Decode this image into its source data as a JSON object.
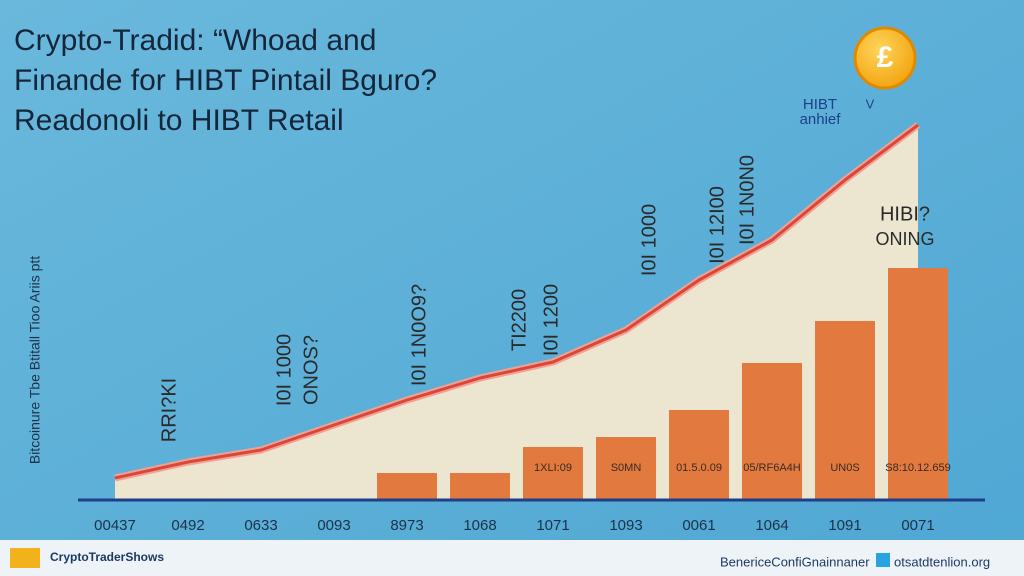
{
  "chart_data": {
    "type": "bar-line",
    "title_lines": [
      "Crypto-Tradid: “Whoad  and",
      "Finande for HIBT Pintail Bguro?",
      "Readonoli to HIBT Retail"
    ],
    "y_label": "Bitcoinure Tbe Btitall Tioo Ariis ptt",
    "categories": [
      "00437",
      "0492",
      "0633",
      "0093",
      "8973",
      "1068",
      "1071",
      "1093",
      "0061",
      "1064",
      "1091",
      "0071"
    ],
    "series": [
      {
        "type": "bar",
        "color": "#e27a40",
        "values": [
          null,
          null,
          null,
          null,
          27,
          27,
          53,
          63,
          90,
          137,
          179,
          232
        ],
        "value_notes": [
          null,
          null,
          null,
          null,
          null,
          null,
          "1XLI:09",
          "S0MN",
          "01.5.0.09",
          "05/RF6A4H",
          "UN0S",
          "S8:10.12.659"
        ]
      },
      {
        "type": "line",
        "color": "#d9473a",
        "values": [
          22,
          38,
          50,
          75,
          100,
          122,
          138,
          170,
          220,
          260,
          320,
          375
        ]
      }
    ],
    "ylim": [
      0,
      420
    ],
    "annotations": [
      "RRI?KI",
      "I0I 1000",
      "ONOS?",
      "I0I 1N0O9?",
      "TI2200",
      "I0I 1200",
      "I0I 1000",
      "I0I 12I00",
      "I0I 1N0N0",
      "HIBT",
      "anhief",
      "V",
      "HIBI?",
      "ONING"
    ],
    "coin_symbol": "£",
    "footer": {
      "brand": "CryptoTraderShows",
      "credit": "BenericeConfiGnainnaner",
      "site": "otsatdtenlion.org"
    }
  }
}
